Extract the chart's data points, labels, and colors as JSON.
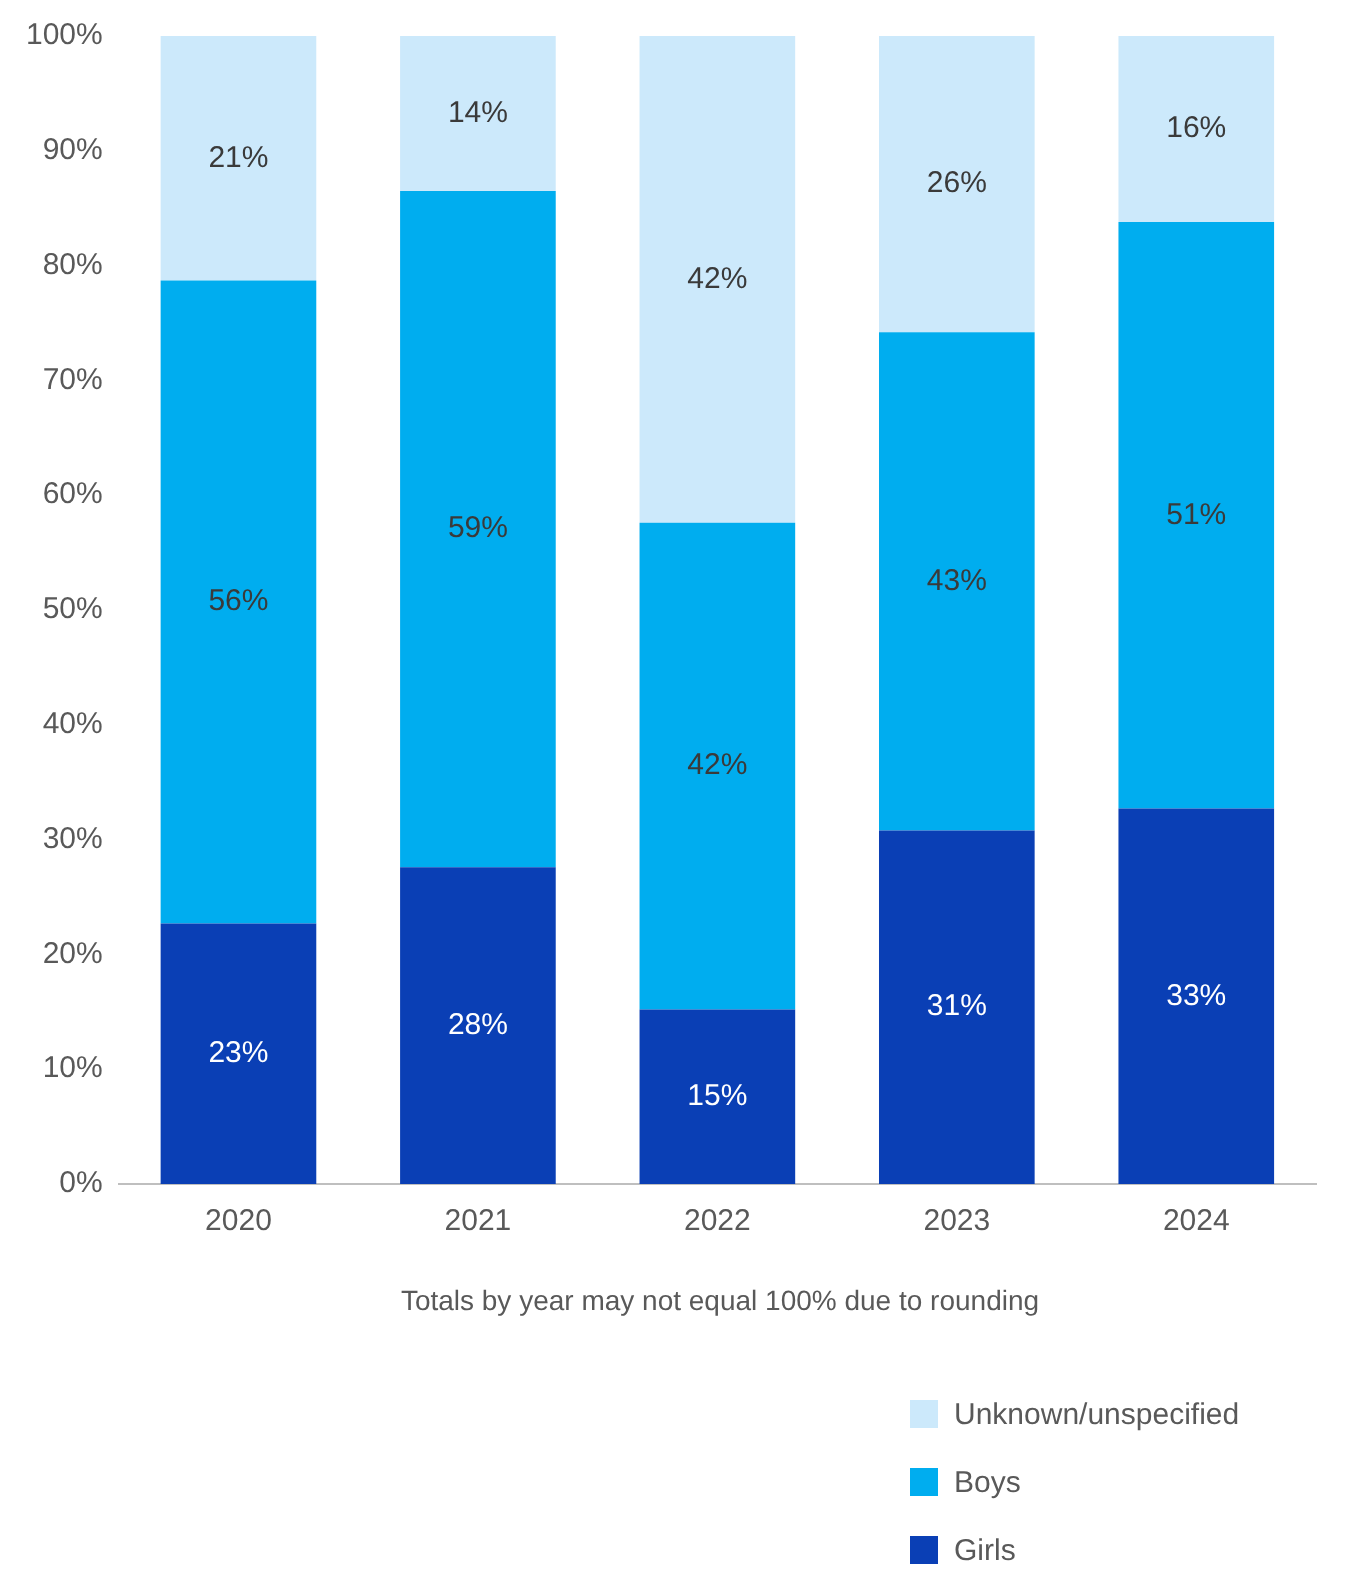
{
  "chart_data": {
    "type": "bar",
    "stacked": true,
    "categories": [
      "2020",
      "2021",
      "2022",
      "2023",
      "2024"
    ],
    "series": [
      {
        "name": "Girls",
        "color": "#0a3fb5",
        "values": [
          22.7,
          27.6,
          15.2,
          30.8,
          32.7
        ],
        "value_labels": [
          "23%",
          "28%",
          "15%",
          "31%",
          "33%"
        ]
      },
      {
        "name": "Boys",
        "color": "#00adef",
        "values": [
          56.0,
          58.9,
          42.4,
          43.4,
          51.1
        ],
        "value_labels": [
          "56%",
          "59%",
          "42%",
          "43%",
          "51%"
        ]
      },
      {
        "name": "Unknown/unspecified",
        "color": "#cce9fb",
        "values": [
          21.3,
          13.5,
          42.4,
          25.8,
          16.2
        ],
        "value_labels": [
          "21%",
          "14%",
          "42%",
          "26%",
          "16%"
        ]
      }
    ],
    "ylim": [
      0,
      100
    ],
    "yticks": [
      {
        "value": 0,
        "label": "0%"
      },
      {
        "value": 10,
        "label": "10%"
      },
      {
        "value": 20,
        "label": "20%"
      },
      {
        "value": 30,
        "label": "30%"
      },
      {
        "value": 40,
        "label": "40%"
      },
      {
        "value": 50,
        "label": "50%"
      },
      {
        "value": 60,
        "label": "60%"
      },
      {
        "value": 70,
        "label": "70%"
      },
      {
        "value": 80,
        "label": "80%"
      },
      {
        "value": 90,
        "label": "90%"
      },
      {
        "value": 100,
        "label": "100%"
      }
    ],
    "grid": false,
    "legend": "bottom right",
    "annotations": [
      "Totals by year may not equal 100% due to rounding"
    ]
  }
}
